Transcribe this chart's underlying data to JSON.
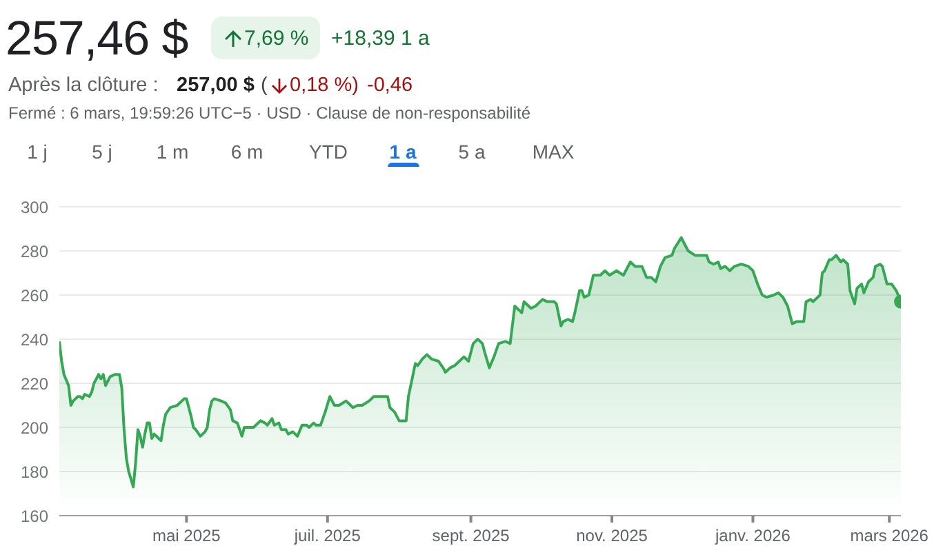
{
  "chart_data": {
    "type": "area",
    "title": "257,46 $",
    "annotations": [
      "7,69 %",
      "+18,39 1 a",
      "Après la clôture :",
      "257,00 $",
      "(",
      "0,18 %)",
      "-0,46",
      "Fermé : 6 mars, 19:59:26 UTC−5 · USD · Clause de non-responsabilité",
      "1 j",
      "5 j",
      "1 m",
      "6 m",
      "YTD",
      "1 a",
      "5 a",
      "MAX"
    ],
    "x": [
      "2025-03-07",
      "2025-03-08",
      "2025-03-09",
      "2025-03-11",
      "2025-03-12",
      "2025-03-13",
      "2025-03-15",
      "2025-03-16",
      "2025-03-17",
      "2025-03-18",
      "2025-03-20",
      "2025-03-21",
      "2025-03-22",
      "2025-03-24",
      "2025-03-25",
      "2025-03-26",
      "2025-03-27",
      "2025-03-28",
      "2025-03-29",
      "2025-03-31",
      "2025-04-02",
      "2025-04-03",
      "2025-04-04",
      "2025-04-05",
      "2025-04-06",
      "2025-04-08",
      "2025-04-09",
      "2025-04-10",
      "2025-04-11",
      "2025-04-12",
      "2025-04-13",
      "2025-04-14",
      "2025-04-15",
      "2025-04-16",
      "2025-04-17",
      "2025-04-18",
      "2025-04-20",
      "2025-04-21",
      "2025-04-22",
      "2025-04-24",
      "2025-04-27",
      "2025-04-30",
      "2025-05-01",
      "2025-05-03",
      "2025-05-04",
      "2025-05-05",
      "2025-05-07",
      "2025-05-09",
      "2025-05-10",
      "2025-05-11",
      "2025-05-12",
      "2025-05-13",
      "2025-05-16",
      "2025-05-18",
      "2025-05-20",
      "2025-05-21",
      "2025-05-23",
      "2025-05-25",
      "2025-05-26",
      "2025-05-28",
      "2025-05-30",
      "2025-06-02",
      "2025-06-04",
      "2025-06-05",
      "2025-06-07",
      "2025-06-08",
      "2025-06-10",
      "2025-06-11",
      "2025-06-13",
      "2025-06-14",
      "2025-06-16",
      "2025-06-17",
      "2025-06-18",
      "2025-06-20",
      "2025-06-22",
      "2025-06-23",
      "2025-06-25",
      "2025-06-26",
      "2025-06-28",
      "2025-06-29",
      "2025-06-30",
      "2025-07-02",
      "2025-07-04",
      "2025-07-06",
      "2025-07-09",
      "2025-07-10",
      "2025-07-12",
      "2025-07-14",
      "2025-07-16",
      "2025-07-19",
      "2025-07-21",
      "2025-07-24",
      "2025-07-27",
      "2025-07-28",
      "2025-07-30",
      "2025-08-01",
      "2025-08-04",
      "2025-08-05",
      "2025-08-08",
      "2025-08-09",
      "2025-08-11",
      "2025-08-13",
      "2025-08-15",
      "2025-08-18",
      "2025-08-20",
      "2025-08-21",
      "2025-08-23",
      "2025-08-25",
      "2025-08-27",
      "2025-08-29",
      "2025-08-30",
      "2025-08-31",
      "2025-09-02",
      "2025-09-04",
      "2025-09-06",
      "2025-09-07",
      "2025-09-09",
      "2025-09-11",
      "2025-09-13",
      "2025-09-16",
      "2025-09-18",
      "2025-09-20",
      "2025-09-22",
      "2025-09-23",
      "2025-09-24",
      "2025-09-26",
      "2025-09-27",
      "2025-09-29",
      "2025-10-02",
      "2025-10-04",
      "2025-10-07",
      "2025-10-08",
      "2025-10-10",
      "2025-10-11",
      "2025-10-13",
      "2025-10-15",
      "2025-10-16",
      "2025-10-18",
      "2025-10-19",
      "2025-10-20",
      "2025-10-22",
      "2025-10-24",
      "2025-10-27",
      "2025-10-29",
      "2025-10-31",
      "2025-11-03",
      "2025-11-06",
      "2025-11-09",
      "2025-11-11",
      "2025-11-14",
      "2025-11-16",
      "2025-11-18",
      "2025-11-20",
      "2025-11-22",
      "2025-11-24",
      "2025-11-27",
      "2025-11-28",
      "2025-12-01",
      "2025-12-02",
      "2025-12-04",
      "2025-12-07",
      "2025-12-09",
      "2025-12-12",
      "2025-12-13",
      "2025-12-15",
      "2025-12-17",
      "2025-12-18",
      "2025-12-20",
      "2025-12-22",
      "2025-12-24",
      "2025-12-27",
      "2025-12-30",
      "2026-01-01",
      "2026-01-03",
      "2026-01-05",
      "2026-01-07",
      "2026-01-10",
      "2026-01-12",
      "2026-01-14",
      "2026-01-16",
      "2026-01-18",
      "2026-01-20",
      "2026-01-23",
      "2026-01-24",
      "2026-01-26",
      "2026-01-27",
      "2026-01-30",
      "2026-01-31",
      "2026-02-01",
      "2026-02-03",
      "2026-02-04",
      "2026-02-06",
      "2026-02-08",
      "2026-02-09",
      "2026-02-11",
      "2026-02-12",
      "2026-02-14",
      "2026-02-15",
      "2026-02-17",
      "2026-02-18",
      "2026-02-20",
      "2026-02-22",
      "2026-02-23",
      "2026-02-25",
      "2026-02-26",
      "2026-02-28",
      "2026-03-02",
      "2026-03-04",
      "2026-03-06"
    ],
    "series": [
      {
        "color": "#34a853",
        "values": [
          239,
          230,
          224,
          219,
          210,
          212,
          214,
          214,
          213,
          215,
          214,
          216,
          220,
          224,
          222,
          224,
          219,
          221,
          223,
          224,
          224,
          218,
          199,
          186,
          180,
          173,
          184,
          199,
          196,
          191,
          197,
          202,
          202,
          195,
          197,
          196,
          194,
          201,
          206,
          209,
          210,
          213,
          213,
          205,
          200,
          199,
          196,
          198,
          200,
          208,
          212,
          213,
          212,
          211,
          208,
          203,
          202,
          196,
          200,
          200,
          200,
          203,
          202,
          201,
          204,
          201,
          202,
          199,
          199,
          197,
          198,
          197,
          196,
          201,
          201,
          200,
          202,
          201,
          201,
          204,
          207,
          214,
          210,
          210,
          212,
          211,
          209,
          210,
          210,
          212,
          214,
          214,
          214,
          209,
          207,
          203,
          203,
          214,
          229,
          228,
          231,
          233,
          231,
          230,
          227,
          225,
          227,
          228,
          230,
          232,
          231,
          230,
          238,
          240,
          238,
          234,
          227,
          232,
          238,
          239,
          238,
          255,
          253,
          252,
          257,
          255,
          254,
          255,
          258,
          257,
          257,
          256,
          246,
          248,
          249,
          248,
          252,
          262,
          262,
          259,
          260,
          269,
          269,
          271,
          269,
          271,
          269,
          275,
          273,
          273,
          268,
          268,
          266,
          273,
          277,
          278,
          281,
          286,
          284,
          280,
          278,
          278,
          278,
          275,
          274,
          275,
          272,
          273,
          271,
          273,
          274,
          273,
          271,
          265,
          260,
          259,
          260,
          261,
          259,
          255,
          247,
          248,
          248,
          257,
          258,
          257,
          260,
          270,
          271,
          276,
          276,
          278,
          275,
          276,
          274,
          262,
          256,
          263,
          265,
          261,
          266,
          268,
          273,
          274,
          273,
          265,
          265,
          262,
          257
        ]
      },
      {
        "type": "scatter",
        "marker": "circle",
        "color": "#34a853",
        "x": [
          "2026-03-06"
        ],
        "values": [
          257
        ]
      }
    ],
    "xlim": [
      "2025-03-07",
      "2026-03-06"
    ],
    "xticks": [
      {
        "value": "2025-05-01",
        "label": "mai 2025"
      },
      {
        "value": "2025-07-01",
        "label": "juil. 2025"
      },
      {
        "value": "2025-09-01",
        "label": "sept. 2025"
      },
      {
        "value": "2025-11-01",
        "label": "nov. 2025"
      },
      {
        "value": "2026-01-01",
        "label": "janv. 2026"
      },
      {
        "value": "2026-03-01",
        "label": "mars 2026"
      }
    ],
    "ylim": [
      160,
      300
    ],
    "yticks": [
      160,
      180,
      200,
      220,
      240,
      260,
      280,
      300
    ],
    "grid": "y"
  }
}
